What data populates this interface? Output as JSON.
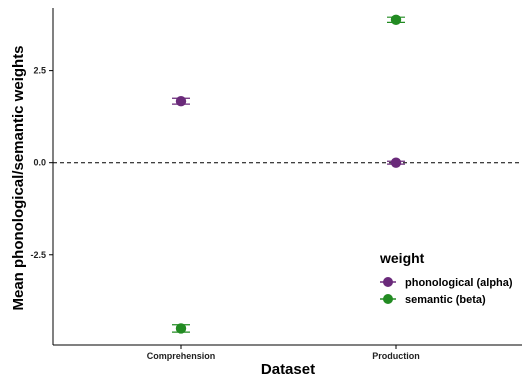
{
  "chart_data": {
    "type": "scatter",
    "xlabel": "Dataset",
    "ylabel": "Mean phonological/semantic weights",
    "categories": [
      "Comprehension",
      "Production"
    ],
    "ylim": [
      -4.95,
      4.2
    ],
    "yticks": [
      -2.5,
      0.0,
      2.5
    ],
    "ytick_labels": [
      "-2.5",
      "0.0",
      "2.5"
    ],
    "reference_line": {
      "y": 0,
      "style": "dashed"
    },
    "grid": false,
    "legend": {
      "title": "weight",
      "position": "right"
    },
    "series": [
      {
        "name": "phonological (alpha)",
        "color": "#6a2a7a",
        "values": [
          1.67,
          0.0
        ],
        "error": [
          0.08,
          0.04
        ]
      },
      {
        "name": "semantic (beta)",
        "color": "#228b22",
        "values": [
          -4.5,
          3.88
        ],
        "error": [
          0.1,
          0.07
        ]
      }
    ]
  }
}
